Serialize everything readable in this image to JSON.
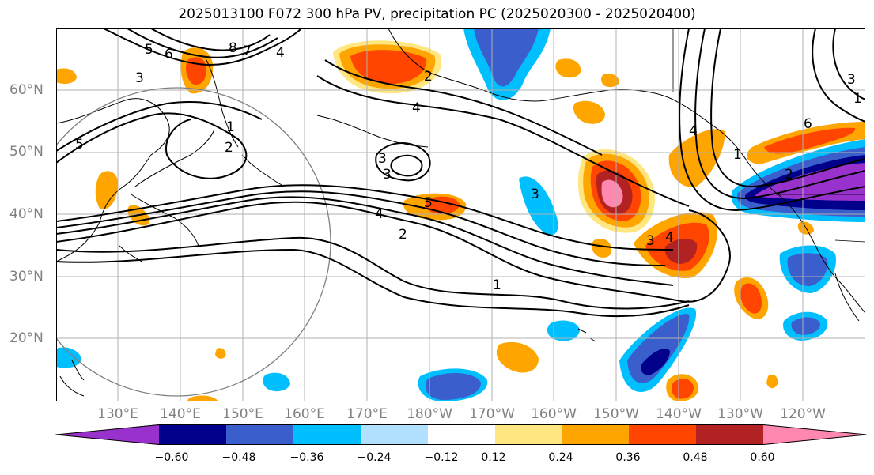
{
  "title": "2025013100 F072 300 hPa PV, precipitation PC (2025020300 - 2025020400)",
  "map": {
    "lat_labels": [
      "60°N",
      "50°N",
      "40°N",
      "30°N",
      "20°N"
    ],
    "lon_labels": [
      "130°E",
      "140°E",
      "150°E",
      "160°E",
      "170°E",
      "180°W",
      "170°W",
      "160°W",
      "150°W",
      "140°W",
      "130°W",
      "120°W"
    ],
    "contour_labels": [
      "5",
      "6",
      "8",
      "7",
      "4",
      "3",
      "1",
      "2",
      "5",
      "2",
      "1",
      "4",
      "3",
      "3",
      "5",
      "4",
      "2",
      "3",
      "1",
      "4",
      "6",
      "2",
      "3",
      "1",
      "3",
      "4"
    ],
    "colors": {
      "land_outline": "#000000",
      "grid": "#b0b0b0",
      "contour": "#000000",
      "circle": "#808080"
    }
  },
  "colorbar": {
    "tick_labels": [
      "−0.60",
      "−0.48",
      "−0.36",
      "−0.24",
      "−0.12",
      "0.12",
      "0.24",
      "0.36",
      "0.48",
      "0.60"
    ],
    "bins": [
      {
        "color": "#9932cc"
      },
      {
        "color": "#00008b"
      },
      {
        "color": "#3a5fcd"
      },
      {
        "color": "#00bfff"
      },
      {
        "color": "#b2e0ff"
      },
      {
        "color": "#ffffff"
      },
      {
        "color": "#ffe680"
      },
      {
        "color": "#ffa500"
      },
      {
        "color": "#ff4500"
      },
      {
        "color": "#b22222"
      },
      {
        "color": "#ff88b0"
      }
    ]
  }
}
